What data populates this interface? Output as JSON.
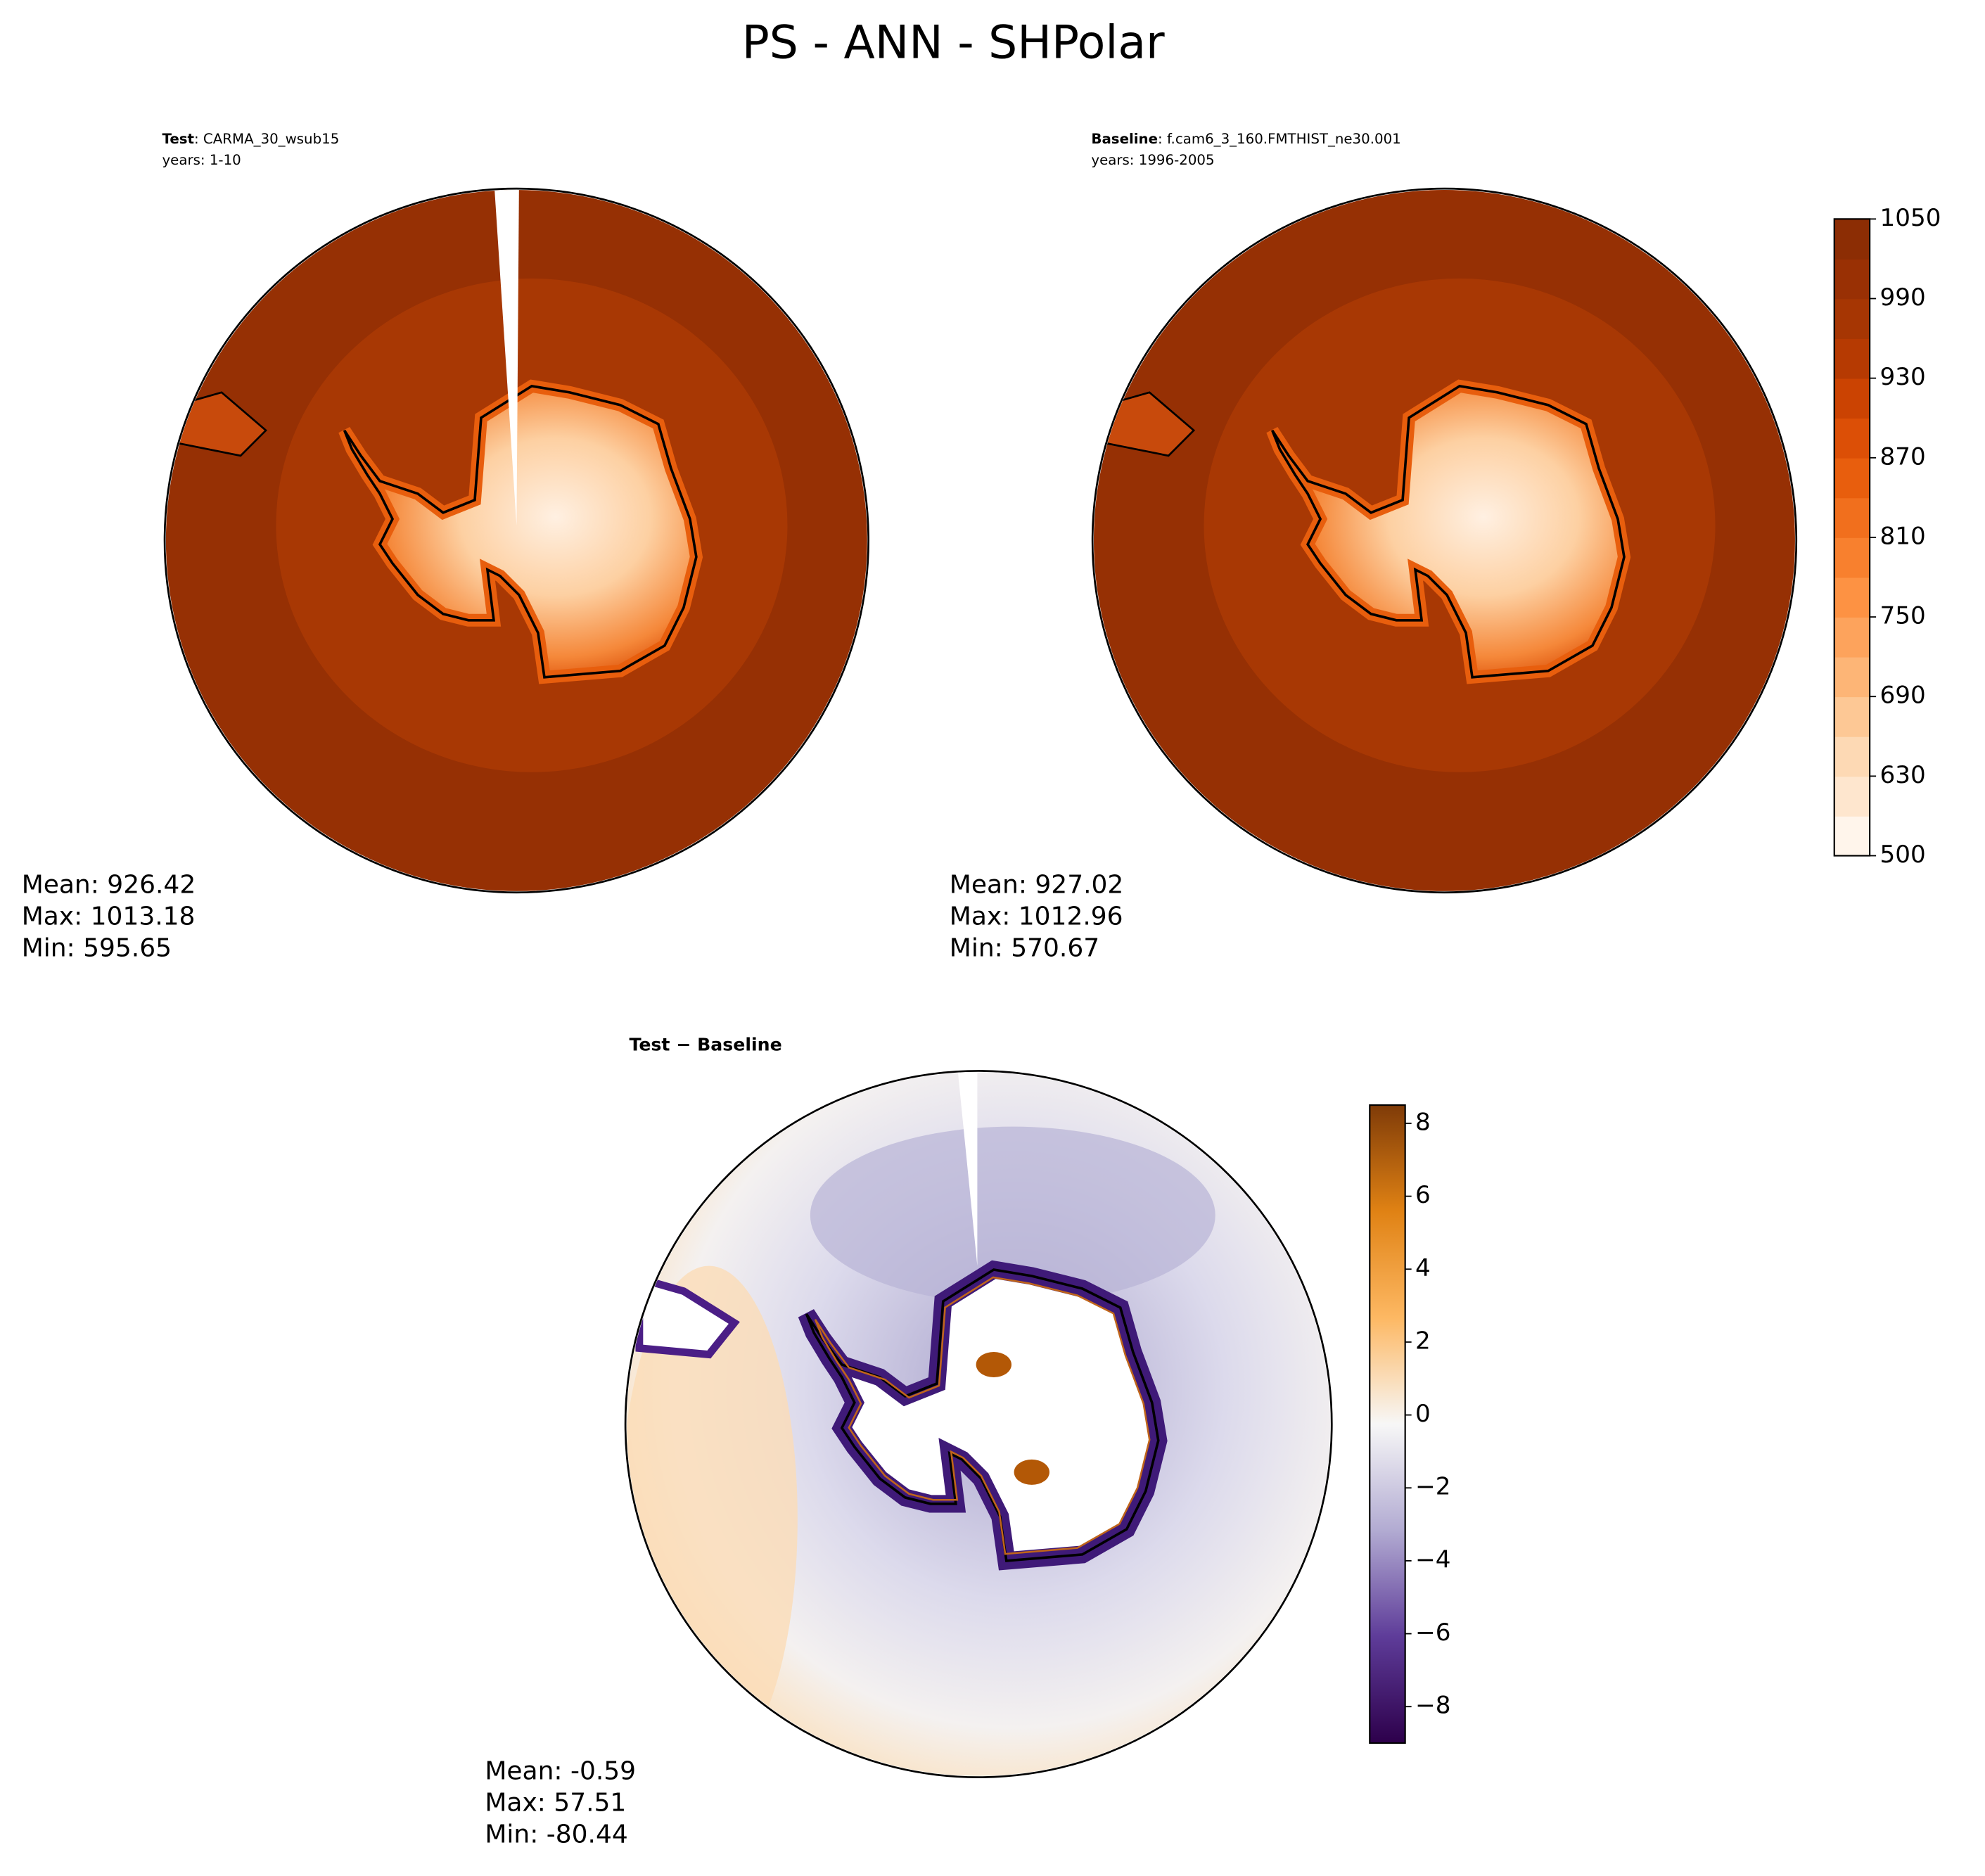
{
  "title": "PS - ANN - SHPolar",
  "panels": [
    {
      "label": "Test",
      "case": ": CARMA_30_wsub15",
      "years": "years: 1-10",
      "stats": [
        "Mean: 926.42",
        "Max: 1013.18",
        "Min: 595.65"
      ]
    },
    {
      "label": "Baseline",
      "case": ": f.cam6_3_160.FMTHIST_ne30.001",
      "years": "years: 1996-2005",
      "stats": [
        "Mean: 927.02",
        "Max: 1012.96",
        "Min: 570.67"
      ]
    },
    {
      "title": "Test − Baseline",
      "stats": [
        "Mean: -0.59",
        "Max: 57.51",
        "Min: -80.44"
      ]
    }
  ],
  "colorbars": [
    {
      "ticks": [
        500,
        630,
        690,
        750,
        810,
        870,
        930,
        990,
        1050
      ],
      "colors": [
        "#fff5eb",
        "#fee6ce",
        "#fdd9b4",
        "#fdc895",
        "#fdb576",
        "#fda35c",
        "#fd9243",
        "#f8802e",
        "#f16f1d",
        "#e85e0d",
        "#dc4f06",
        "#cb4302",
        "#b63a02",
        "#a63603",
        "#993004",
        "#8c2d04"
      ]
    },
    {
      "lim": [
        -9,
        8.5
      ],
      "ticks": [
        {
          "value": -8,
          "label": "−8"
        },
        {
          "value": -6,
          "label": "−6"
        },
        {
          "value": -4,
          "label": "−4"
        },
        {
          "value": -2,
          "label": "−2"
        },
        0,
        2,
        4,
        6,
        8
      ],
      "colors": [
        "#2d004b",
        "#5e3c99",
        "#b2abd2",
        "#f7f7f7",
        "#fdb863",
        "#e08214",
        "#7f3b08"
      ]
    }
  ]
}
